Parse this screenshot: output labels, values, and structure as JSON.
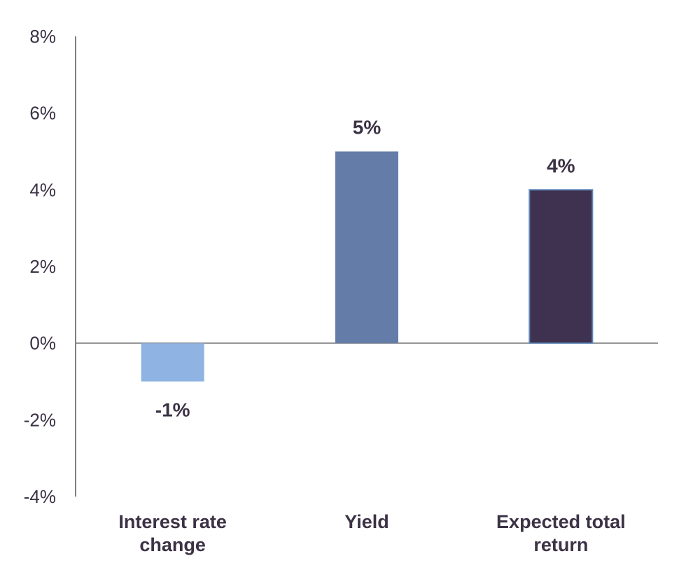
{
  "chart_data": {
    "type": "bar",
    "categories": [
      "Interest rate change",
      "Yield",
      "Expected total return"
    ],
    "category_lines": [
      [
        "Interest rate",
        "change"
      ],
      [
        "Yield"
      ],
      [
        "Expected total",
        "return"
      ]
    ],
    "values": [
      -1,
      5,
      4
    ],
    "data_labels": [
      "-1%",
      "5%",
      "4%"
    ],
    "ylim": [
      -4,
      8
    ],
    "yticks": [
      -4,
      -2,
      0,
      2,
      4,
      6,
      8
    ],
    "ytick_labels": [
      "-4%",
      "-2%",
      "0%",
      "2%",
      "4%",
      "6%",
      "8%"
    ],
    "colors": [
      "#8fb4e3",
      "#647ca8",
      "#3f3150"
    ],
    "bar_outline": [
      "none",
      "none",
      "#5b86b8"
    ],
    "title": "",
    "xlabel": "",
    "ylabel": "",
    "grid": false,
    "axis_color": "#808080"
  }
}
